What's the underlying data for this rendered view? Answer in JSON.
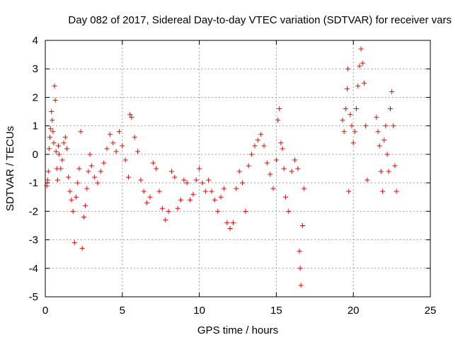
{
  "chart_data": {
    "type": "scatter",
    "title": "Day 082 of 2017, Sidereal Day-to-day VTEC variation (SDTVAR) for receiver vars",
    "xlabel": "GPS time / hours",
    "ylabel": "SDTVAR / TECUs",
    "xlim": [
      0,
      25
    ],
    "ylim": [
      -5,
      4
    ],
    "grid": true,
    "marker": "+",
    "color": "#ff0000",
    "xticks": [
      0,
      5,
      10,
      15,
      20,
      25
    ],
    "yticks": [
      -5,
      -4,
      -3,
      -2,
      -1,
      0,
      1,
      2,
      3,
      4
    ],
    "series": [
      {
        "name": "SDTVAR",
        "points": [
          [
            0.1,
            -1.1
          ],
          [
            0.15,
            -0.9
          ],
          [
            0.2,
            -0.6
          ],
          [
            0.25,
            0.2
          ],
          [
            0.3,
            0.6
          ],
          [
            0.35,
            0.9
          ],
          [
            0.4,
            1.5
          ],
          [
            0.45,
            1.2
          ],
          [
            0.5,
            0.8
          ],
          [
            0.55,
            0.4
          ],
          [
            0.6,
            2.4
          ],
          [
            0.65,
            1.9
          ],
          [
            0.7,
            0.1
          ],
          [
            0.75,
            -0.5
          ],
          [
            0.8,
            -0.9
          ],
          [
            0.85,
            0.3
          ],
          [
            0.9,
            0.0
          ],
          [
            1.0,
            -0.5
          ],
          [
            1.1,
            -0.2
          ],
          [
            1.2,
            0.4
          ],
          [
            1.3,
            0.6
          ],
          [
            1.4,
            0.2
          ],
          [
            1.5,
            -0.8
          ],
          [
            1.6,
            -1.3
          ],
          [
            1.7,
            -1.6
          ],
          [
            1.8,
            -2.0
          ],
          [
            1.9,
            -3.1
          ],
          [
            2.0,
            -1.5
          ],
          [
            2.1,
            -1.0
          ],
          [
            2.2,
            -0.5
          ],
          [
            2.3,
            0.8
          ],
          [
            2.4,
            -3.3
          ],
          [
            2.5,
            -2.2
          ],
          [
            2.6,
            -1.8
          ],
          [
            2.7,
            -1.2
          ],
          [
            2.8,
            -0.6
          ],
          [
            2.9,
            0.0
          ],
          [
            3.0,
            -0.4
          ],
          [
            3.2,
            -0.8
          ],
          [
            3.4,
            -1.0
          ],
          [
            3.6,
            -0.6
          ],
          [
            3.8,
            -0.3
          ],
          [
            4.0,
            0.2
          ],
          [
            4.2,
            0.7
          ],
          [
            4.4,
            0.4
          ],
          [
            4.6,
            0.1
          ],
          [
            4.8,
            0.8
          ],
          [
            5.0,
            0.3
          ],
          [
            5.2,
            -0.2
          ],
          [
            5.4,
            -0.8
          ],
          [
            5.5,
            1.4
          ],
          [
            5.6,
            1.3
          ],
          [
            5.8,
            0.6
          ],
          [
            6.0,
            0.1
          ],
          [
            6.2,
            -0.9
          ],
          [
            6.4,
            -1.3
          ],
          [
            6.6,
            -1.7
          ],
          [
            6.8,
            -1.5
          ],
          [
            7.0,
            -0.3
          ],
          [
            7.2,
            -0.5
          ],
          [
            7.4,
            -1.3
          ],
          [
            7.6,
            -1.9
          ],
          [
            7.8,
            -2.3
          ],
          [
            8.0,
            -2.0
          ],
          [
            8.2,
            -0.6
          ],
          [
            8.4,
            -0.8
          ],
          [
            8.6,
            -1.9
          ],
          [
            8.8,
            -1.6
          ],
          [
            9.0,
            -0.9
          ],
          [
            9.2,
            -1.0
          ],
          [
            9.4,
            -1.6
          ],
          [
            9.6,
            -1.4
          ],
          [
            9.8,
            -0.9
          ],
          [
            10.0,
            -0.5
          ],
          [
            10.2,
            -1.0
          ],
          [
            10.4,
            -1.3
          ],
          [
            10.6,
            -0.9
          ],
          [
            10.8,
            -1.3
          ],
          [
            11.0,
            -1.6
          ],
          [
            11.2,
            -2.0
          ],
          [
            11.4,
            -1.5
          ],
          [
            11.6,
            -1.2
          ],
          [
            11.8,
            -2.4
          ],
          [
            12.0,
            -2.6
          ],
          [
            12.2,
            -2.4
          ],
          [
            12.4,
            -1.2
          ],
          [
            12.6,
            -0.6
          ],
          [
            12.8,
            -1.0
          ],
          [
            13.0,
            -2.0
          ],
          [
            13.2,
            -0.4
          ],
          [
            13.4,
            0.0
          ],
          [
            13.6,
            0.3
          ],
          [
            13.8,
            0.5
          ],
          [
            14.0,
            0.7
          ],
          [
            14.2,
            0.3
          ],
          [
            14.4,
            -0.3
          ],
          [
            14.6,
            -0.7
          ],
          [
            14.8,
            -1.2
          ],
          [
            15.0,
            -0.2
          ],
          [
            15.1,
            1.2
          ],
          [
            15.2,
            1.6
          ],
          [
            15.3,
            0.4
          ],
          [
            15.4,
            0.2
          ],
          [
            15.5,
            -0.5
          ],
          [
            15.6,
            -1.5
          ],
          [
            15.8,
            -2.0
          ],
          [
            16.0,
            -0.6
          ],
          [
            16.2,
            -0.2
          ],
          [
            16.4,
            -0.5
          ],
          [
            16.5,
            -3.4
          ],
          [
            16.55,
            -4.0
          ],
          [
            16.6,
            -4.6
          ],
          [
            16.7,
            -2.5
          ],
          [
            16.8,
            -1.2
          ],
          [
            19.3,
            1.2
          ],
          [
            19.4,
            0.8
          ],
          [
            19.5,
            1.6
          ],
          [
            19.6,
            2.3
          ],
          [
            19.65,
            3.0
          ],
          [
            19.7,
            -1.3
          ],
          [
            19.8,
            1.4
          ],
          [
            19.9,
            1.0
          ],
          [
            20.0,
            0.4
          ],
          [
            20.1,
            0.8
          ],
          [
            20.2,
            1.6
          ],
          [
            20.3,
            2.4
          ],
          [
            20.4,
            3.1
          ],
          [
            20.5,
            3.7
          ],
          [
            20.6,
            3.2
          ],
          [
            20.7,
            2.5
          ],
          [
            20.8,
            1.0
          ],
          [
            20.9,
            -0.9
          ],
          [
            21.5,
            1.3
          ],
          [
            21.6,
            0.8
          ],
          [
            21.7,
            0.3
          ],
          [
            21.8,
            -0.6
          ],
          [
            21.9,
            -1.3
          ],
          [
            22.0,
            0.5
          ],
          [
            22.1,
            1.0
          ],
          [
            22.2,
            0.0
          ],
          [
            22.3,
            -0.6
          ],
          [
            22.4,
            1.6
          ],
          [
            22.5,
            2.2
          ],
          [
            22.6,
            1.0
          ],
          [
            22.7,
            -0.4
          ],
          [
            22.8,
            -1.3
          ]
        ]
      }
    ]
  }
}
